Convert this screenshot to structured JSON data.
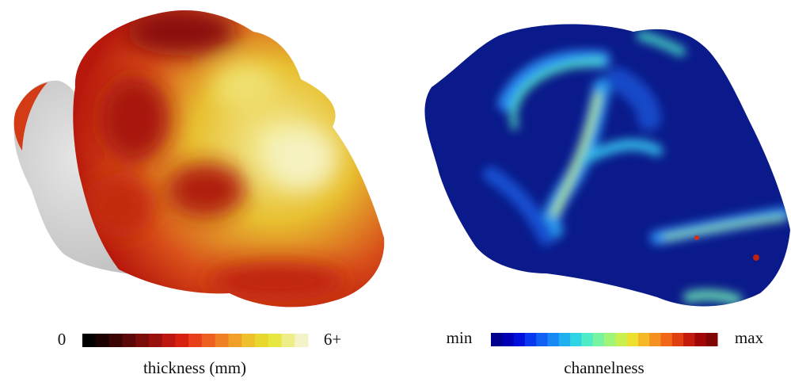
{
  "panels": [
    {
      "colorbar": {
        "min_label": "0",
        "max_label": "6+"
      },
      "caption": "thickness (mm)"
    },
    {
      "colorbar": {
        "min_label": "min",
        "max_label": "max"
      },
      "caption": "channelness"
    }
  ]
}
